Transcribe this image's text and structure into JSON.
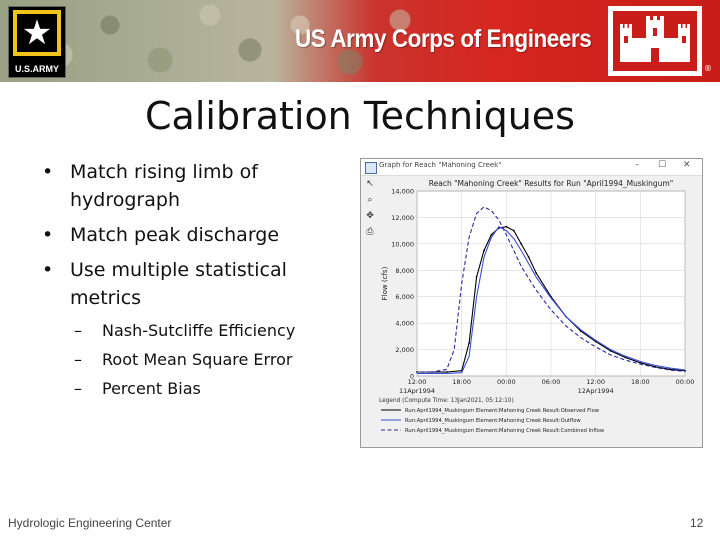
{
  "header": {
    "army_logo_text": "U.S.ARMY",
    "org_name": "US Army Corps of Engineers",
    "registered": "®"
  },
  "slide": {
    "title": "Calibration Techniques",
    "bullets": [
      "Match rising limb of hydrograph",
      "Match peak discharge",
      "Use multiple statistical metrics"
    ],
    "sub_bullets": [
      "Nash-Sutcliffe Efficiency",
      "Root Mean Square Error",
      "Percent Bias"
    ]
  },
  "graph_window": {
    "title": "Graph for Reach \"Mahoning Creek\"",
    "controls": {
      "minimize": "–",
      "maximize": "☐",
      "close": "✕"
    },
    "tools": [
      "pointer-icon",
      "zoom-icon",
      "pan-icon",
      "print-icon"
    ]
  },
  "chart_data": {
    "type": "line",
    "title": "Reach \"Mahoning Creek\" Results for Run \"April1994_Muskingum\"",
    "ylabel": "Flow (cfs)",
    "ylim": [
      0,
      14000
    ],
    "yticks": [
      "0",
      "2,000",
      "4,000",
      "6,000",
      "8,000",
      "10,000",
      "12,000",
      "14,000"
    ],
    "xlim": [
      12,
      48
    ],
    "xticks": [
      "12:00",
      "18:00",
      "00:00",
      "06:00",
      "12:00",
      "18:00",
      "00:00"
    ],
    "xdates": [
      "11Apr1994",
      "12Apr1994"
    ],
    "grid": true,
    "legend_title": "Legend (Compute Time: 13Jan2021, 05:12:10)",
    "legend_placement": "bottom",
    "series": [
      {
        "name": "Run:April1994_Muskingum Element:Mahoning Creek Result:Observed Flow",
        "color": "#000000",
        "style": "solid-markers",
        "x": [
          12,
          14,
          16,
          18,
          19,
          20,
          21,
          22,
          23,
          24,
          25,
          26,
          27,
          28,
          30,
          32,
          34,
          36,
          38,
          40,
          42,
          44,
          46,
          48
        ],
        "y": [
          300,
          300,
          300,
          400,
          2500,
          7500,
          9500,
          10700,
          11200,
          11300,
          11000,
          10000,
          9000,
          7800,
          6000,
          4500,
          3400,
          2600,
          1900,
          1400,
          1000,
          700,
          500,
          400
        ]
      },
      {
        "name": "Run:April1994_Muskingum Element:Mahoning Creek Result:Outflow",
        "color": "#3a4fd8",
        "style": "solid",
        "x": [
          12,
          14,
          16,
          18,
          19,
          20,
          21,
          22,
          23,
          24,
          25,
          26,
          27,
          28,
          30,
          32,
          34,
          36,
          38,
          40,
          42,
          44,
          46,
          48
        ],
        "y": [
          200,
          200,
          200,
          250,
          1500,
          6000,
          9000,
          10500,
          11300,
          11000,
          10400,
          9500,
          8500,
          7500,
          5900,
          4500,
          3500,
          2700,
          2000,
          1500,
          1100,
          800,
          600,
          450
        ]
      },
      {
        "name": "Run:April1994_Muskingum Element:Mahoning Creek Result:Combined Inflow",
        "color": "#2a2aa0",
        "style": "dashed",
        "x": [
          12,
          14,
          16,
          17,
          18,
          19,
          20,
          21,
          22,
          23,
          24,
          25,
          26,
          28,
          30,
          32,
          34,
          36,
          38,
          40,
          42,
          44,
          46,
          48
        ],
        "y": [
          300,
          300,
          500,
          2000,
          7000,
          10500,
          12300,
          12800,
          12500,
          11800,
          10700,
          9500,
          8300,
          6500,
          5000,
          3800,
          2900,
          2200,
          1600,
          1200,
          900,
          650,
          450,
          350
        ]
      }
    ]
  },
  "footer": {
    "center": "Hydrologic Engineering Center",
    "page": "12"
  }
}
